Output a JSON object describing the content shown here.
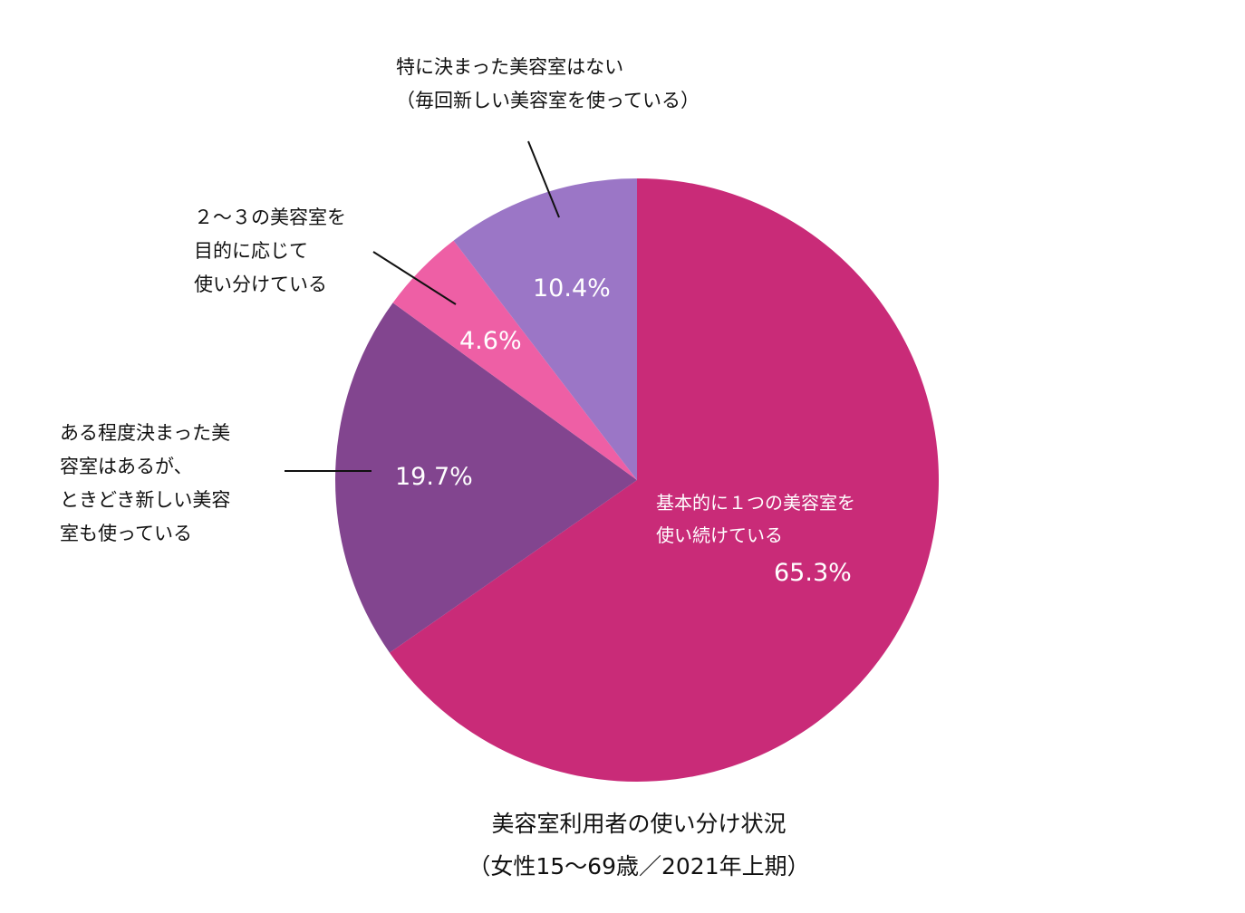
{
  "chart_data": {
    "type": "pie",
    "title": "美容室利用者の使い分け状況",
    "subtitle": "（女性15〜69歳／2021年上期）",
    "slices": [
      {
        "label_lines": [
          "基本的に１つの美容室を",
          "使い続けている"
        ],
        "value": 65.3,
        "value_label": "65.3%",
        "color": "#c92b78"
      },
      {
        "label_lines": [
          "ある程度決まった美",
          "容室はあるが、",
          "ときどき新しい美容",
          "室も使っている"
        ],
        "value": 19.7,
        "value_label": "19.7%",
        "color": "#82458f"
      },
      {
        "label_lines": [
          "２〜３の美容室を",
          "目的に応じて",
          "使い分けている"
        ],
        "value": 4.6,
        "value_label": "4.6%",
        "color": "#ee5fa5"
      },
      {
        "label_lines": [
          "特に決まった美容室はない",
          "（毎回新しい美容室を使っている）"
        ],
        "value": 10.4,
        "value_label": "10.4%",
        "color": "#9b76c6"
      }
    ]
  }
}
